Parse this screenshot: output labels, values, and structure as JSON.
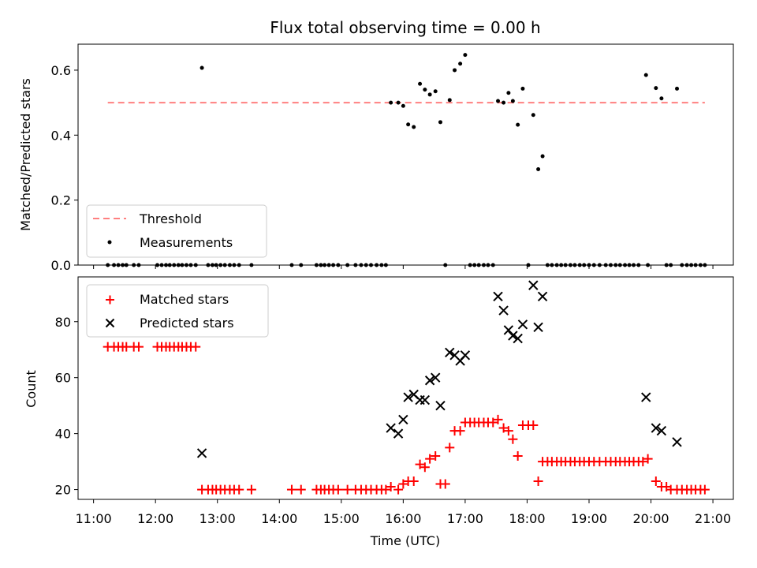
{
  "chart_data": [
    {
      "type": "scatter",
      "title": "Flux total observing time = 0.00 h",
      "xlabel": "",
      "ylabel": "Matched/Predicted stars",
      "ylim": [
        0,
        0.68
      ],
      "yticks": [
        "0.0",
        "0.2",
        "0.4",
        "0.6"
      ],
      "threshold": {
        "name": "Threshold",
        "value": 0.5,
        "x_range": [
          11.23,
          20.87
        ],
        "color": "#ff8080"
      },
      "series": [
        {
          "name": "Measurements",
          "color": "#000000",
          "points": [
            [
              11.23,
              0
            ],
            [
              11.33,
              0
            ],
            [
              11.4,
              0
            ],
            [
              11.47,
              0
            ],
            [
              11.53,
              0
            ],
            [
              11.65,
              0
            ],
            [
              11.73,
              0
            ],
            [
              12.03,
              0
            ],
            [
              12.1,
              0
            ],
            [
              12.17,
              0
            ],
            [
              12.23,
              0
            ],
            [
              12.3,
              0
            ],
            [
              12.37,
              0
            ],
            [
              12.43,
              0
            ],
            [
              12.5,
              0
            ],
            [
              12.57,
              0
            ],
            [
              12.65,
              0
            ],
            [
              12.75,
              0.607
            ],
            [
              12.85,
              0
            ],
            [
              12.92,
              0
            ],
            [
              12.98,
              0
            ],
            [
              13.05,
              0
            ],
            [
              13.12,
              0
            ],
            [
              13.2,
              0
            ],
            [
              13.27,
              0
            ],
            [
              13.35,
              0
            ],
            [
              13.55,
              0
            ],
            [
              14.2,
              0
            ],
            [
              14.35,
              0
            ],
            [
              14.6,
              0
            ],
            [
              14.67,
              0
            ],
            [
              14.73,
              0
            ],
            [
              14.8,
              0
            ],
            [
              14.87,
              0
            ],
            [
              14.95,
              0
            ],
            [
              15.1,
              0
            ],
            [
              15.23,
              0
            ],
            [
              15.32,
              0
            ],
            [
              15.4,
              0
            ],
            [
              15.48,
              0
            ],
            [
              15.57,
              0
            ],
            [
              15.65,
              0
            ],
            [
              15.72,
              0
            ],
            [
              15.8,
              0.5
            ],
            [
              15.92,
              0.5
            ],
            [
              16.0,
              0.49
            ],
            [
              16.08,
              0.433
            ],
            [
              16.17,
              0.425
            ],
            [
              16.27,
              0.558
            ],
            [
              16.35,
              0.54
            ],
            [
              16.43,
              0.525
            ],
            [
              16.52,
              0.535
            ],
            [
              16.6,
              0.44
            ],
            [
              16.68,
              0
            ],
            [
              16.75,
              0.508
            ],
            [
              16.83,
              0.6
            ],
            [
              16.92,
              0.62
            ],
            [
              17.0,
              0.647
            ],
            [
              17.08,
              0
            ],
            [
              17.15,
              0
            ],
            [
              17.22,
              0
            ],
            [
              17.3,
              0
            ],
            [
              17.37,
              0
            ],
            [
              17.45,
              0
            ],
            [
              17.53,
              0.505
            ],
            [
              17.62,
              0.5
            ],
            [
              17.7,
              0.53
            ],
            [
              17.77,
              0.505
            ],
            [
              17.85,
              0.432
            ],
            [
              17.93,
              0.543
            ],
            [
              18.02,
              0
            ],
            [
              18.1,
              0.462
            ],
            [
              18.18,
              0.295
            ],
            [
              18.25,
              0.335
            ],
            [
              18.33,
              0
            ],
            [
              18.4,
              0
            ],
            [
              18.48,
              0
            ],
            [
              18.55,
              0
            ],
            [
              18.62,
              0
            ],
            [
              18.7,
              0
            ],
            [
              18.77,
              0
            ],
            [
              18.85,
              0
            ],
            [
              18.92,
              0
            ],
            [
              19.0,
              0
            ],
            [
              19.08,
              0
            ],
            [
              19.17,
              0
            ],
            [
              19.27,
              0
            ],
            [
              19.35,
              0
            ],
            [
              19.43,
              0
            ],
            [
              19.5,
              0
            ],
            [
              19.58,
              0
            ],
            [
              19.65,
              0
            ],
            [
              19.72,
              0
            ],
            [
              19.8,
              0
            ],
            [
              19.95,
              0
            ],
            [
              19.92,
              0.585
            ],
            [
              20.08,
              0.545
            ],
            [
              20.17,
              0.513
            ],
            [
              20.25,
              0
            ],
            [
              20.32,
              0
            ],
            [
              20.42,
              0.543
            ],
            [
              20.5,
              0
            ],
            [
              20.58,
              0
            ],
            [
              20.65,
              0
            ],
            [
              20.72,
              0
            ],
            [
              20.8,
              0
            ],
            [
              20.87,
              0
            ]
          ]
        }
      ],
      "legend": [
        "Threshold",
        "Measurements"
      ],
      "legend_position": "lower-left"
    },
    {
      "type": "scatter",
      "xlabel": "Time (UTC)",
      "ylabel": "Count",
      "xlim": [
        10.75,
        21.33
      ],
      "ylim": [
        16.5,
        96
      ],
      "xticks": [
        "11:00",
        "12:00",
        "13:00",
        "14:00",
        "15:00",
        "16:00",
        "17:00",
        "18:00",
        "19:00",
        "20:00",
        "21:00"
      ],
      "yticks": [
        "20",
        "40",
        "60",
        "80"
      ],
      "series": [
        {
          "name": "Matched stars",
          "marker": "+",
          "color": "#ff0000",
          "points": [
            [
              11.23,
              71
            ],
            [
              11.33,
              71
            ],
            [
              11.4,
              71
            ],
            [
              11.47,
              71
            ],
            [
              11.53,
              71
            ],
            [
              11.65,
              71
            ],
            [
              11.73,
              71
            ],
            [
              12.03,
              71
            ],
            [
              12.1,
              71
            ],
            [
              12.17,
              71
            ],
            [
              12.23,
              71
            ],
            [
              12.3,
              71
            ],
            [
              12.37,
              71
            ],
            [
              12.43,
              71
            ],
            [
              12.5,
              71
            ],
            [
              12.57,
              71
            ],
            [
              12.65,
              71
            ],
            [
              12.75,
              20
            ],
            [
              12.85,
              20
            ],
            [
              12.92,
              20
            ],
            [
              12.98,
              20
            ],
            [
              13.05,
              20
            ],
            [
              13.12,
              20
            ],
            [
              13.2,
              20
            ],
            [
              13.27,
              20
            ],
            [
              13.35,
              20
            ],
            [
              13.55,
              20
            ],
            [
              14.2,
              20
            ],
            [
              14.35,
              20
            ],
            [
              14.6,
              20
            ],
            [
              14.67,
              20
            ],
            [
              14.73,
              20
            ],
            [
              14.8,
              20
            ],
            [
              14.87,
              20
            ],
            [
              14.95,
              20
            ],
            [
              15.1,
              20
            ],
            [
              15.23,
              20
            ],
            [
              15.32,
              20
            ],
            [
              15.4,
              20
            ],
            [
              15.48,
              20
            ],
            [
              15.57,
              20
            ],
            [
              15.65,
              20
            ],
            [
              15.72,
              20
            ],
            [
              15.8,
              21
            ],
            [
              15.92,
              20
            ],
            [
              16.0,
              22
            ],
            [
              16.08,
              23
            ],
            [
              16.17,
              23
            ],
            [
              16.27,
              29
            ],
            [
              16.35,
              28
            ],
            [
              16.43,
              31
            ],
            [
              16.52,
              32
            ],
            [
              16.6,
              22
            ],
            [
              16.68,
              22
            ],
            [
              16.75,
              35
            ],
            [
              16.83,
              41
            ],
            [
              16.92,
              41
            ],
            [
              17.0,
              44
            ],
            [
              17.08,
              44
            ],
            [
              17.15,
              44
            ],
            [
              17.22,
              44
            ],
            [
              17.3,
              44
            ],
            [
              17.37,
              44
            ],
            [
              17.45,
              44
            ],
            [
              17.53,
              45
            ],
            [
              17.62,
              42
            ],
            [
              17.7,
              41
            ],
            [
              17.77,
              38
            ],
            [
              17.85,
              32
            ],
            [
              17.93,
              43
            ],
            [
              18.02,
              43
            ],
            [
              18.1,
              43
            ],
            [
              18.18,
              23
            ],
            [
              18.25,
              30
            ],
            [
              18.33,
              30
            ],
            [
              18.4,
              30
            ],
            [
              18.48,
              30
            ],
            [
              18.55,
              30
            ],
            [
              18.62,
              30
            ],
            [
              18.7,
              30
            ],
            [
              18.77,
              30
            ],
            [
              18.85,
              30
            ],
            [
              18.92,
              30
            ],
            [
              19.0,
              30
            ],
            [
              19.08,
              30
            ],
            [
              19.17,
              30
            ],
            [
              19.27,
              30
            ],
            [
              19.35,
              30
            ],
            [
              19.43,
              30
            ],
            [
              19.5,
              30
            ],
            [
              19.58,
              30
            ],
            [
              19.65,
              30
            ],
            [
              19.72,
              30
            ],
            [
              19.8,
              30
            ],
            [
              19.87,
              30
            ],
            [
              19.95,
              31
            ],
            [
              20.08,
              23
            ],
            [
              20.17,
              21
            ],
            [
              20.25,
              21
            ],
            [
              20.32,
              20
            ],
            [
              20.42,
              20
            ],
            [
              20.5,
              20
            ],
            [
              20.58,
              20
            ],
            [
              20.65,
              20
            ],
            [
              20.72,
              20
            ],
            [
              20.8,
              20
            ],
            [
              20.87,
              20
            ]
          ]
        },
        {
          "name": "Predicted stars",
          "marker": "x",
          "color": "#000000",
          "points": [
            [
              12.75,
              33
            ],
            [
              15.8,
              42
            ],
            [
              15.92,
              40
            ],
            [
              16.0,
              45
            ],
            [
              16.08,
              53
            ],
            [
              16.17,
              54
            ],
            [
              16.27,
              52
            ],
            [
              16.35,
              52
            ],
            [
              16.43,
              59
            ],
            [
              16.52,
              60
            ],
            [
              16.6,
              50
            ],
            [
              16.75,
              69
            ],
            [
              16.83,
              68
            ],
            [
              16.92,
              66
            ],
            [
              17.0,
              68
            ],
            [
              17.53,
              89
            ],
            [
              17.62,
              84
            ],
            [
              17.7,
              77
            ],
            [
              17.77,
              75
            ],
            [
              17.85,
              74
            ],
            [
              17.93,
              79
            ],
            [
              18.1,
              93
            ],
            [
              18.18,
              78
            ],
            [
              18.25,
              89
            ],
            [
              19.92,
              53
            ],
            [
              20.08,
              42
            ],
            [
              20.17,
              41
            ],
            [
              20.42,
              37
            ]
          ]
        }
      ],
      "legend": [
        "Matched stars",
        "Predicted stars"
      ],
      "legend_position": "upper-left"
    }
  ]
}
